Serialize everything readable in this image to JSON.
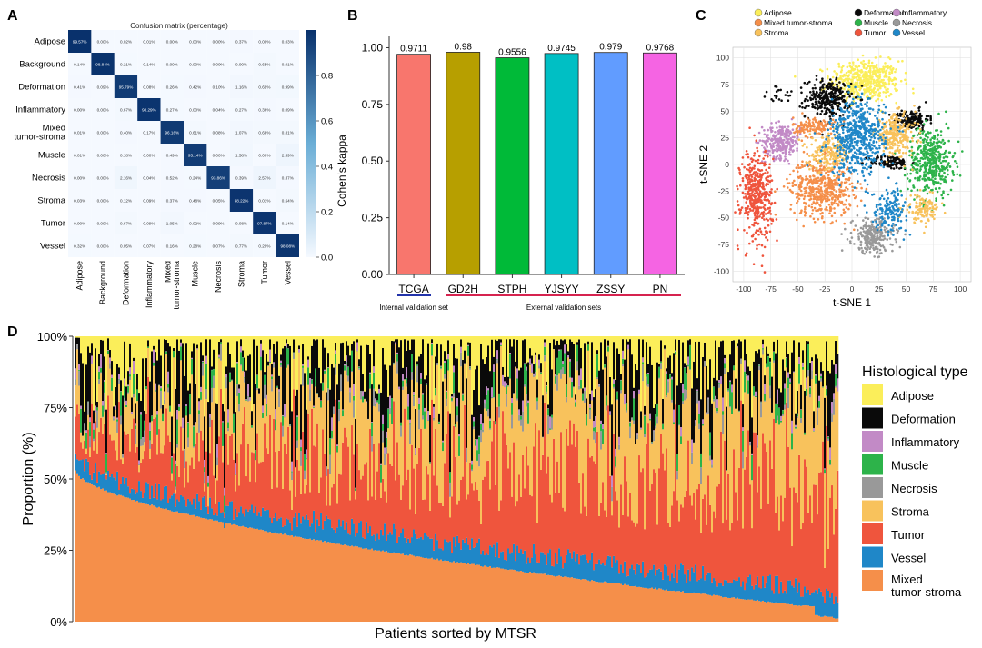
{
  "panel_labels": [
    "A",
    "B",
    "C",
    "D"
  ],
  "colors": {
    "Adipose": "#fbee5a",
    "Deformation": "#0a0a0a",
    "Inflammatory": "#c28ac6",
    "Muscle": "#2db34a",
    "Necrosis": "#999999",
    "Stroma": "#f8c25c",
    "Tumor": "#ef553d",
    "Vessel": "#1f87c8",
    "Mixed tumor-stroma": "#f58f4a",
    "Background": "#dddddd",
    "heat_low": "#f5f9ff",
    "heat_high": "#08306b",
    "internal_line": "#2233aa",
    "external_line": "#d6234f"
  },
  "chart_data": [
    {
      "panel": "A",
      "type": "heatmap",
      "title": "Confusion matrix (percentage)",
      "categories": [
        "Adipose",
        "Background",
        "Deformation",
        "Inflammatory",
        "Mixed tumor-stroma",
        "Muscle",
        "Necrosis",
        "Stroma",
        "Tumor",
        "Vessel"
      ],
      "row_labels": [
        "Adipose",
        "Background",
        "Deformation",
        "Inflammatory",
        "Mixed\ntumor-stroma",
        "Muscle",
        "Necrosis",
        "Stroma",
        "Tumor",
        "Vessel"
      ],
      "col_labels": [
        "Adipose",
        "Background",
        "Deformation",
        "Inflammatory",
        "Mixed\ntumor-stroma",
        "Muscle",
        "Necrosis",
        "Stroma",
        "Tumor",
        "Vessel"
      ],
      "values": [
        [
          "99.57%",
          "0.00%",
          "0.02%",
          "0.01%",
          "0.00%",
          "0.00%",
          "0.00%",
          "0.37%",
          "0.00%",
          "0.03%"
        ],
        [
          "0.14%",
          "98.84%",
          "0.21%",
          "0.14%",
          "0.00%",
          "0.00%",
          "0.00%",
          "0.00%",
          "0.65%",
          "0.01%"
        ],
        [
          "0.41%",
          "0.09%",
          "95.79%",
          "0.08%",
          "0.26%",
          "0.42%",
          "0.10%",
          "1.16%",
          "0.69%",
          "0.99%"
        ],
        [
          "0.00%",
          "0.00%",
          "0.67%",
          "98.29%",
          "0.27%",
          "0.00%",
          "0.04%",
          "0.27%",
          "0.36%",
          "0.09%"
        ],
        [
          "0.01%",
          "0.00%",
          "0.40%",
          "0.17%",
          "96.16%",
          "0.61%",
          "0.08%",
          "1.07%",
          "0.68%",
          "0.81%"
        ],
        [
          "0.01%",
          "0.00%",
          "0.18%",
          "0.00%",
          "0.49%",
          "95.14%",
          "0.00%",
          "1.58%",
          "0.00%",
          "2.59%"
        ],
        [
          "0.00%",
          "0.00%",
          "2.16%",
          "0.04%",
          "0.52%",
          "0.24%",
          "93.86%",
          "0.39%",
          "2.57%",
          "0.37%"
        ],
        [
          "0.03%",
          "0.00%",
          "0.12%",
          "0.09%",
          "0.37%",
          "0.48%",
          "0.05%",
          "98.22%",
          "0.01%",
          "0.64%"
        ],
        [
          "0.00%",
          "0.00%",
          "0.67%",
          "0.09%",
          "1.05%",
          "0.02%",
          "0.09%",
          "0.08%",
          "97.87%",
          "0.14%"
        ],
        [
          "0.32%",
          "0.00%",
          "0.05%",
          "0.07%",
          "0.16%",
          "0.28%",
          "0.07%",
          "0.77%",
          "0.20%",
          "98.08%"
        ]
      ],
      "colorbar_ticks": [
        "0.0",
        "0.2",
        "0.4",
        "0.6",
        "0.8"
      ],
      "colorbar_range": [
        0,
        1
      ]
    },
    {
      "panel": "B",
      "type": "bar",
      "categories": [
        "TCGA",
        "GD2H",
        "STPH",
        "YJSYY",
        "ZSSY",
        "PN"
      ],
      "values": [
        0.9711,
        0.98,
        0.9556,
        0.9745,
        0.979,
        0.9768
      ],
      "value_labels": [
        "0.9711",
        "0.98",
        "0.9556",
        "0.9745",
        "0.979",
        "0.9768"
      ],
      "bar_colors": [
        "#f8766d",
        "#b79f00",
        "#00ba38",
        "#00bfc4",
        "#619cff",
        "#f564e3"
      ],
      "ylabel": "Cohen's kappa",
      "ylim": [
        0,
        1.05
      ],
      "yticks": [
        "0.00",
        "0.25",
        "0.50",
        "0.75",
        "1.00"
      ],
      "groups": [
        "Internal validation set",
        "External validation sets"
      ]
    },
    {
      "panel": "C",
      "type": "scatter",
      "xlabel": "t-SNE 1",
      "ylabel": "t-SNE 2",
      "xlim": [
        -110,
        110
      ],
      "ylim": [
        -110,
        110
      ],
      "xticks": [
        "-100",
        "-75",
        "-50",
        "-25",
        "0",
        "25",
        "50",
        "75",
        "100"
      ],
      "yticks": [
        "-100",
        "-75",
        "-50",
        "-25",
        "0",
        "25",
        "50",
        "75",
        "100"
      ],
      "grid": true,
      "legend_position": "top",
      "legend": [
        "Adipose",
        "Deformation",
        "Inflammatory",
        "Mixed tumor-stroma",
        "Muscle",
        "Necrosis",
        "Stroma",
        "Tumor",
        "Vessel"
      ],
      "clusters": [
        {
          "name": "Adipose",
          "cx": 12,
          "cy": 78,
          "sx": 20,
          "sy": 12,
          "n": 500
        },
        {
          "name": "Deformation",
          "cx": -22,
          "cy": 62,
          "sx": 13,
          "sy": 11,
          "n": 280
        },
        {
          "name": "Deformation",
          "cx": 55,
          "cy": 42,
          "sx": 10,
          "sy": 6,
          "n": 140
        },
        {
          "name": "Deformation",
          "cx": 35,
          "cy": 2,
          "sx": 12,
          "sy": 4,
          "n": 120
        },
        {
          "name": "Deformation",
          "cx": -65,
          "cy": 65,
          "sx": 12,
          "sy": 5,
          "n": 20
        },
        {
          "name": "Inflammatory",
          "cx": -65,
          "cy": 22,
          "sx": 11,
          "sy": 10,
          "n": 260
        },
        {
          "name": "Mixed tumor-stroma",
          "cx": -28,
          "cy": -22,
          "sx": 18,
          "sy": 17,
          "n": 500
        },
        {
          "name": "Mixed tumor-stroma",
          "cx": -35,
          "cy": 35,
          "sx": 12,
          "sy": 6,
          "n": 140
        },
        {
          "name": "Muscle",
          "cx": 73,
          "cy": 3,
          "sx": 13,
          "sy": 20,
          "n": 420
        },
        {
          "name": "Necrosis",
          "cx": 20,
          "cy": -67,
          "sx": 12,
          "sy": 10,
          "n": 260
        },
        {
          "name": "Stroma",
          "cx": 40,
          "cy": 28,
          "sx": 12,
          "sy": 12,
          "n": 260
        },
        {
          "name": "Stroma",
          "cx": -20,
          "cy": 10,
          "sx": 12,
          "sy": 10,
          "n": 200
        },
        {
          "name": "Stroma",
          "cx": 65,
          "cy": -42,
          "sx": 10,
          "sy": 8,
          "n": 120
        },
        {
          "name": "Tumor",
          "cx": -88,
          "cy": -28,
          "sx": 9,
          "sy": 26,
          "n": 420
        },
        {
          "name": "Vessel",
          "cx": 5,
          "cy": 25,
          "sx": 16,
          "sy": 22,
          "n": 560
        },
        {
          "name": "Vessel",
          "cx": 35,
          "cy": -42,
          "sx": 10,
          "sy": 12,
          "n": 160
        }
      ]
    },
    {
      "panel": "D",
      "type": "bar",
      "stacked": true,
      "xlabel": "Patients sorted by MTSR",
      "ylabel": "Proportion (%)",
      "ylim": [
        0,
        100
      ],
      "yticks": [
        "0%",
        "25%",
        "50%",
        "75%",
        "100%"
      ],
      "n_patients": 420,
      "legend_title": "Histological type",
      "legend_position": "right",
      "legend": [
        "Adipose",
        "Deformation",
        "Inflammatory",
        "Muscle",
        "Necrosis",
        "Stroma",
        "Tumor",
        "Vessel",
        "Mixed\ntumor-stroma"
      ],
      "stack_order_bottom_to_top": [
        "Mixed tumor-stroma",
        "Vessel",
        "Tumor",
        "Stroma",
        "Necrosis",
        "Muscle",
        "Inflammatory",
        "Deformation",
        "Adipose"
      ],
      "mtsr_range": [
        0.53,
        0.0
      ]
    }
  ]
}
